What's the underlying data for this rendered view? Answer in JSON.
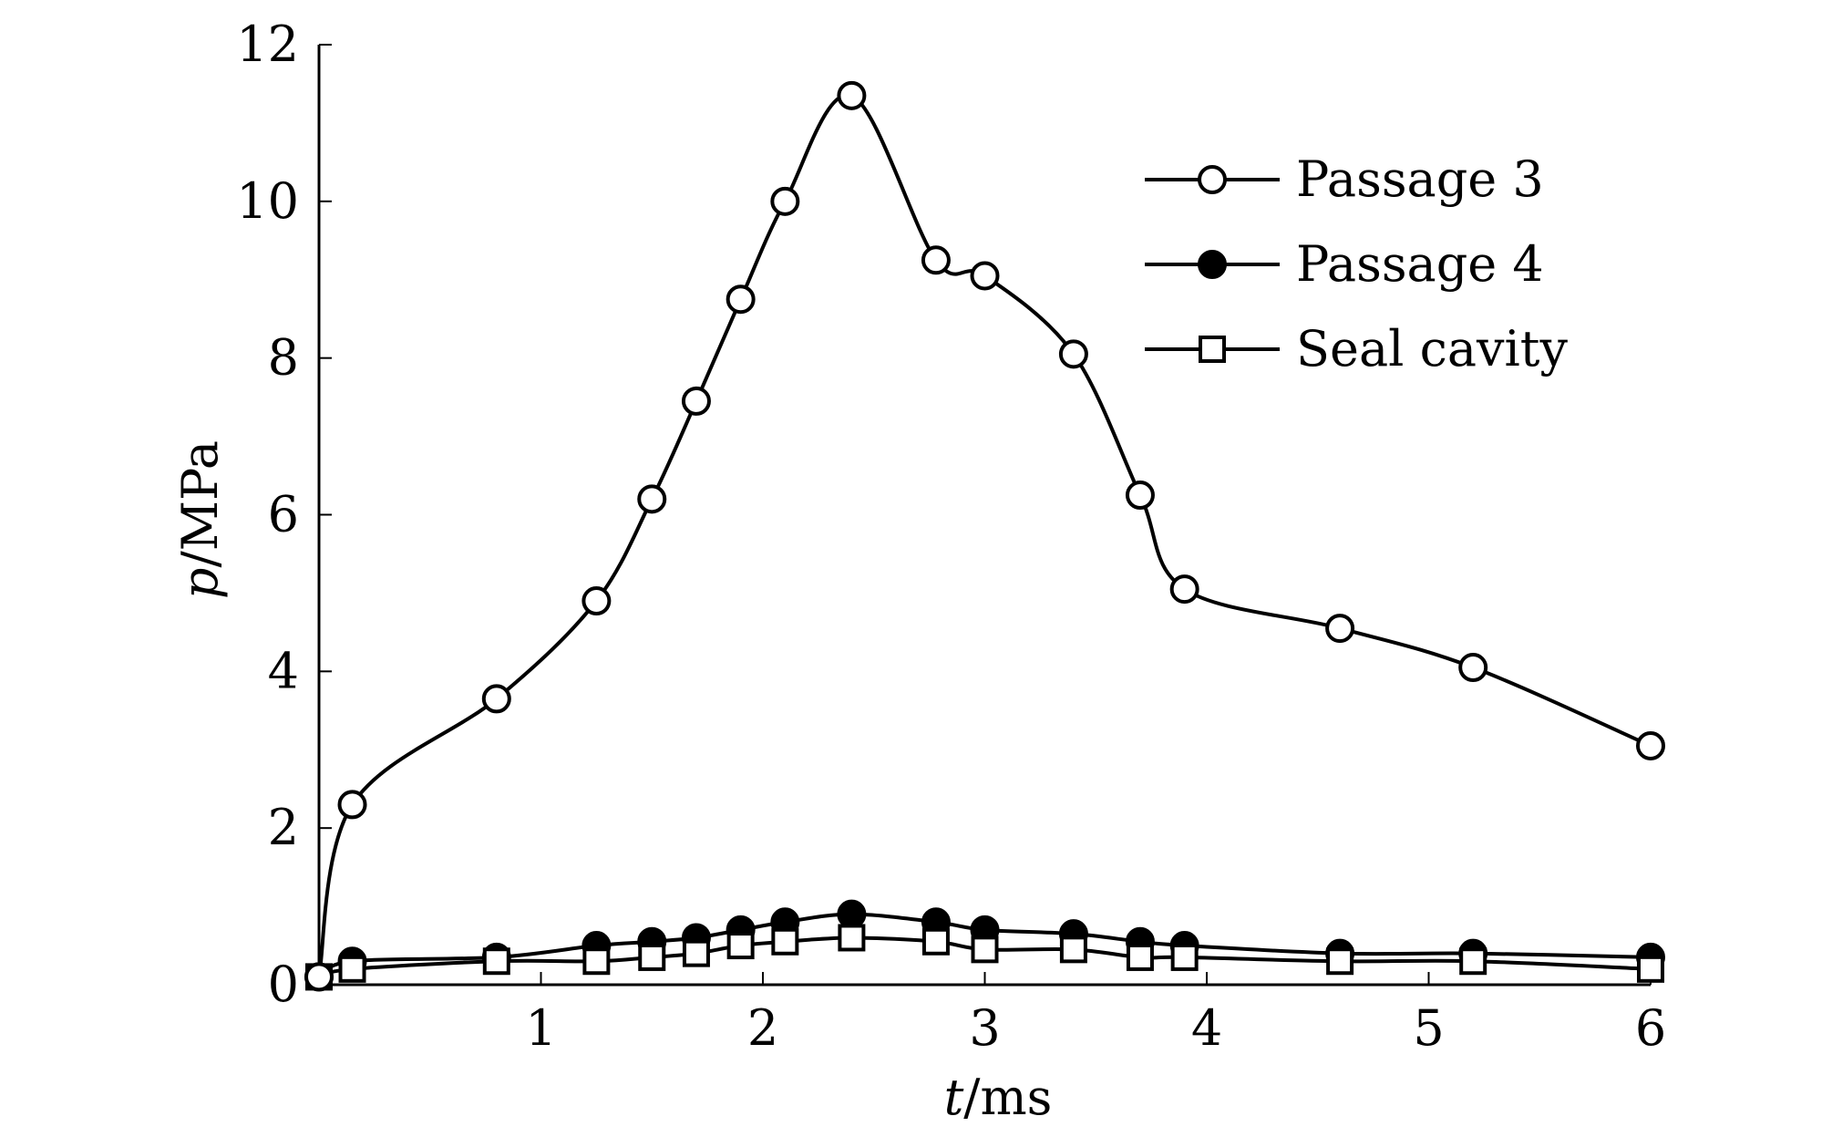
{
  "chart_data": {
    "type": "line",
    "title": "",
    "xlabel_italic": "t",
    "xlabel_unit": "/ms",
    "ylabel_italic": "p",
    "ylabel_unit": "/MPa",
    "xlim": [
      0,
      6
    ],
    "ylim": [
      0,
      12
    ],
    "xticks": [
      1,
      2,
      3,
      4,
      5,
      6
    ],
    "yticks": [
      0,
      2,
      4,
      6,
      8,
      10,
      12
    ],
    "grid": false,
    "legend_position": "top-right",
    "x": [
      0,
      0.15,
      0.8,
      1.25,
      1.5,
      1.7,
      1.9,
      2.1,
      2.4,
      2.78,
      3.0,
      3.4,
      3.7,
      3.9,
      4.6,
      5.2,
      6.0
    ],
    "series": [
      {
        "name": "Passage 3",
        "marker": "open-circle",
        "values": [
          0.1,
          2.3,
          3.65,
          4.9,
          6.2,
          7.45,
          8.75,
          10.0,
          11.35,
          9.25,
          9.05,
          8.05,
          6.25,
          5.05,
          4.55,
          4.05,
          3.05
        ]
      },
      {
        "name": "Passage 4",
        "marker": "filled-circle",
        "values": [
          0.1,
          0.3,
          0.35,
          0.5,
          0.55,
          0.6,
          0.7,
          0.8,
          0.9,
          0.8,
          0.7,
          0.65,
          0.55,
          0.5,
          0.4,
          0.4,
          0.35
        ]
      },
      {
        "name": "Seal cavity",
        "marker": "open-square",
        "values": [
          0.1,
          0.2,
          0.3,
          0.3,
          0.35,
          0.4,
          0.5,
          0.55,
          0.6,
          0.55,
          0.45,
          0.45,
          0.35,
          0.35,
          0.3,
          0.3,
          0.2
        ]
      }
    ]
  }
}
